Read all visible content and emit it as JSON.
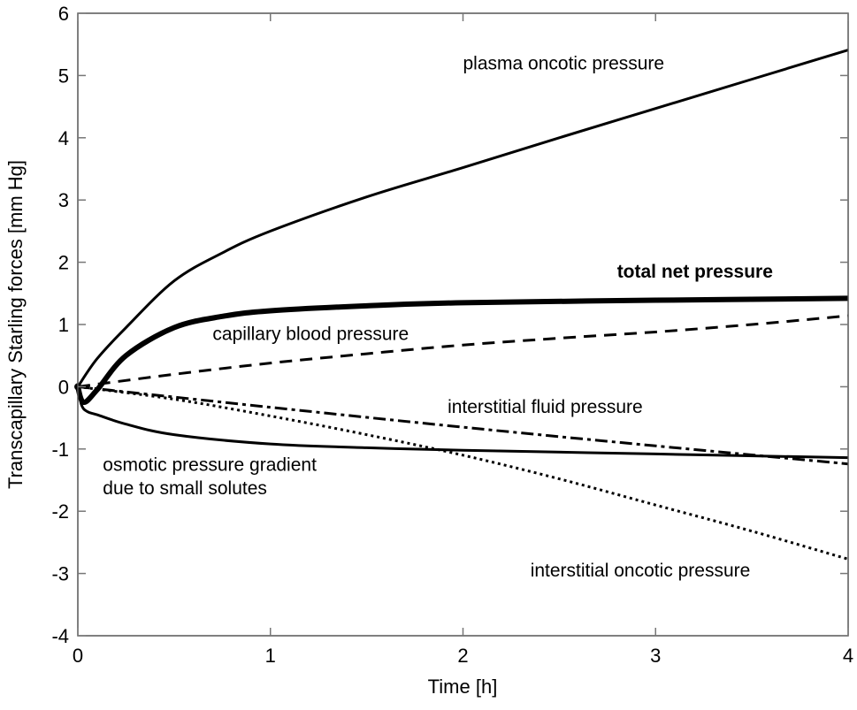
{
  "chart_data": {
    "type": "line",
    "xlabel": "Time [h]",
    "ylabel": "Transcapillary Starling forces [mm Hg]",
    "xlim": [
      0,
      4
    ],
    "ylim": [
      -4,
      6
    ],
    "xticks": [
      "0",
      "1",
      "2",
      "3",
      "4"
    ],
    "yticks": [
      "6",
      "5",
      "4",
      "3",
      "2",
      "1",
      "0",
      "-1",
      "-2",
      "-3",
      "-4"
    ],
    "grid": false,
    "series": [
      {
        "name": "plasma oncotic pressure",
        "style": "solid",
        "width": 3,
        "x": [
          0,
          0.1,
          0.25,
          0.5,
          0.75,
          1,
          1.5,
          2,
          2.5,
          3,
          3.5,
          4
        ],
        "y": [
          0,
          0.45,
          0.95,
          1.7,
          2.15,
          2.5,
          3.05,
          3.52,
          4.0,
          4.47,
          4.94,
          5.41
        ]
      },
      {
        "name": "total net pressure",
        "style": "solid",
        "width": 6,
        "bold": true,
        "x": [
          0,
          0.03,
          0.1,
          0.25,
          0.5,
          0.75,
          1,
          1.5,
          2,
          3,
          4
        ],
        "y": [
          0,
          -0.25,
          -0.05,
          0.5,
          0.95,
          1.13,
          1.22,
          1.3,
          1.35,
          1.39,
          1.42
        ]
      },
      {
        "name": "capillary blood pressure",
        "style": "dashed",
        "width": 3,
        "x": [
          0,
          0.5,
          1,
          1.5,
          2,
          2.5,
          3,
          3.5,
          4
        ],
        "y": [
          0,
          0.2,
          0.38,
          0.53,
          0.67,
          0.78,
          0.88,
          1.0,
          1.14
        ]
      },
      {
        "name": "interstitial fluid pressure",
        "style": "dashdot",
        "width": 3,
        "x": [
          0,
          1,
          2,
          3,
          4
        ],
        "y": [
          0,
          -0.33,
          -0.65,
          -0.95,
          -1.24
        ]
      },
      {
        "name": "osmotic pressure gradient due to small solutes",
        "style": "solid",
        "width": 3,
        "x": [
          0,
          0.02,
          0.05,
          0.1,
          0.25,
          0.5,
          1,
          1.5,
          2,
          3,
          4
        ],
        "y": [
          0,
          -0.3,
          -0.4,
          -0.45,
          -0.6,
          -0.77,
          -0.92,
          -0.98,
          -1.02,
          -1.08,
          -1.14
        ]
      },
      {
        "name": "interstitial oncotic pressure",
        "style": "dotted",
        "width": 3,
        "x": [
          0,
          0.5,
          1,
          1.5,
          2,
          2.5,
          3,
          3.5,
          4
        ],
        "y": [
          0,
          -0.2,
          -0.47,
          -0.77,
          -1.1,
          -1.48,
          -1.9,
          -2.32,
          -2.77
        ]
      }
    ],
    "annotations": [
      {
        "text": "plasma oncotic pressure",
        "x": 2.0,
        "y": 5.1
      },
      {
        "text": "total net pressure",
        "x": 2.8,
        "y": 1.75,
        "bold": true
      },
      {
        "text": "capillary blood pressure",
        "x": 0.7,
        "y": 0.75
      },
      {
        "text": "interstitial fluid pressure",
        "x": 1.92,
        "y": -0.42
      },
      {
        "text": "osmotic pressure gradient",
        "x": 0.13,
        "y": -1.35
      },
      {
        "text": "due to small solutes",
        "x": 0.13,
        "y": -1.73
      },
      {
        "text": "interstitial oncotic pressure",
        "x": 2.35,
        "y": -3.05
      }
    ]
  }
}
